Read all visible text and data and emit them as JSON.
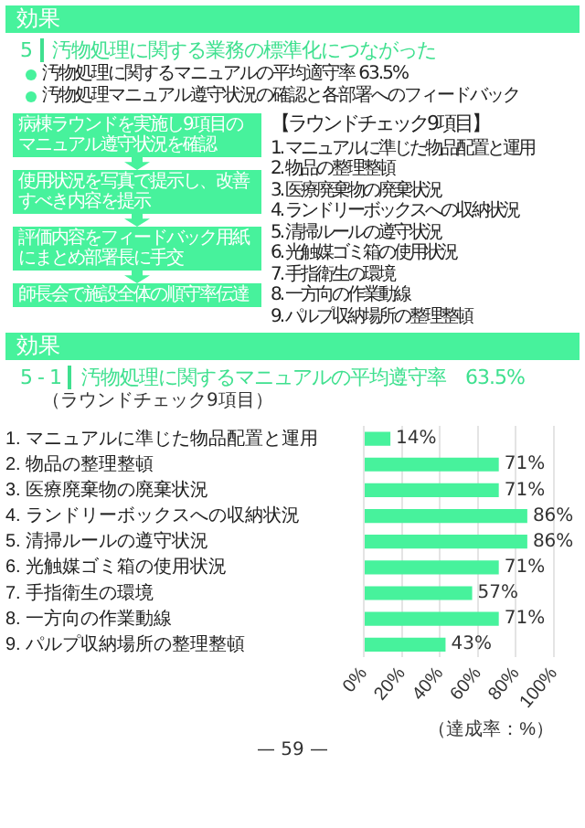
{
  "chart_data": [
    {
      "type": "other",
      "title": "効果",
      "subtitle": "汚物処理に関する業務の標準化につながった",
      "annotations": [
        "5",
        "汚物処理に関するマニュアルの平均適守率 63.5%",
        "汚物処理マニュアル遵守状況の確認と各部署へのフィードバック",
        "病棟ラウンドを実施し9項目のマニュアル遵守状況を確認",
        "使用状況を写真で提示し、改善すべき内容を提示",
        "評価内容をフィードバック用紙にまとめ部署長に手交",
        "師長会で施設全体の順守率伝達",
        "【ラウンドチェック9項目】",
        "1. マニュアルに準じた物品配置と運用",
        "2. 物品の整理整頓",
        "3. 医療廃棄物の廃棄状況",
        "4. ランドリーボックスへの収納状況",
        "5. 清掃ルールの遵守状況",
        "6. 光触媒ゴミ箱の使用状況",
        "7. 手指衛生の環境",
        "8. 一方向の作業動線",
        "9. パルプ収納場所の整理整頓"
      ]
    },
    {
      "type": "bar",
      "orientation": "horizontal",
      "title": "効果",
      "subtitle": "汚物処理に関するマニュアルの平均遵守率　63.5%",
      "xlabel": "（達成率：%）",
      "annotations": [
        "5 - 1",
        "（ラウンドチェック9項目）",
        "— 59 —"
      ],
      "categories": [
        "1. マニュアルに準じた物品配置と運用",
        "2. 物品の整理整頓",
        "3. 医療廃棄物の廃棄状況",
        "4. ランドリーボックスへの収納状況",
        "5. 清掃ルールの遵守状況",
        "6. 光触媒ゴミ箱の使用状況",
        "7. 手指衛生の環境",
        "8. 一方向の作業動線",
        "9. パルプ収納場所の整理整頓"
      ],
      "values": [
        14,
        71,
        71,
        86,
        86,
        71,
        57,
        71,
        43
      ],
      "value_labels": [
        "14%",
        "71%",
        "71%",
        "86%",
        "86%",
        "71%",
        "57%",
        "71%",
        "43%"
      ],
      "color": "#47f29c",
      "xlim": [
        0,
        100
      ],
      "xticks": [
        {
          "value": 0,
          "label": "0%"
        },
        {
          "value": 20,
          "label": "20%"
        },
        {
          "value": 40,
          "label": "40%"
        },
        {
          "value": 60,
          "label": "60%"
        },
        {
          "value": 80,
          "label": "80%"
        },
        {
          "value": 100,
          "label": "100%"
        }
      ],
      "grid": "x"
    }
  ]
}
